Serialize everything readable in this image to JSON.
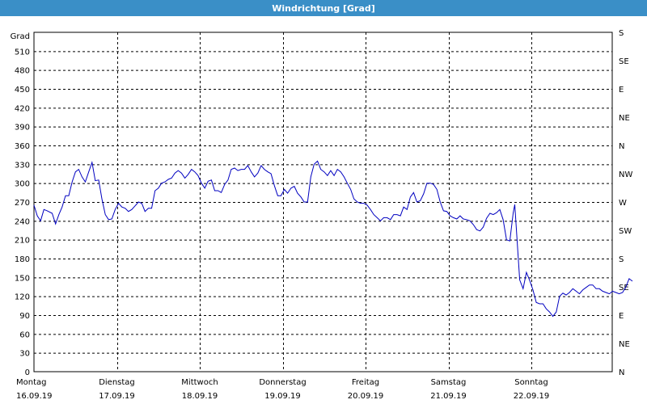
{
  "window": {
    "title": "Windrichtung [Grad]"
  },
  "colors": {
    "titlebar": "#3a8fc7",
    "line": "#0000c0",
    "grid": "#000000"
  },
  "chart_data": {
    "type": "line",
    "ylabel": "Grad",
    "ylim": [
      0,
      540
    ],
    "yticks": [
      0,
      30,
      60,
      90,
      120,
      150,
      180,
      210,
      240,
      270,
      300,
      330,
      360,
      390,
      420,
      450,
      480,
      510
    ],
    "right_ticks": [
      {
        "v": 0,
        "label": "N"
      },
      {
        "v": 45,
        "label": "NE"
      },
      {
        "v": 90,
        "label": "E"
      },
      {
        "v": 135,
        "label": "SE"
      },
      {
        "v": 180,
        "label": "S"
      },
      {
        "v": 225,
        "label": "SW"
      },
      {
        "v": 270,
        "label": "W"
      },
      {
        "v": 315,
        "label": "NW"
      },
      {
        "v": 360,
        "label": "N"
      },
      {
        "v": 405,
        "label": "NE"
      },
      {
        "v": 450,
        "label": "E"
      },
      {
        "v": 495,
        "label": "SE"
      },
      {
        "v": 540,
        "label": "S"
      }
    ],
    "xlim": [
      0,
      7
    ],
    "day_labels": [
      {
        "x": 0,
        "day": "Montag",
        "date": "16.09.19"
      },
      {
        "x": 1,
        "day": "Dienstag",
        "date": "17.09.19"
      },
      {
        "x": 2,
        "day": "Mittwoch",
        "date": "18.09.19"
      },
      {
        "x": 3,
        "day": "Donnerstag",
        "date": "19.09.19"
      },
      {
        "x": 4,
        "day": "Freitag",
        "date": "20.09.19"
      },
      {
        "x": 5,
        "day": "Samstag",
        "date": "21.09.19"
      },
      {
        "x": 6,
        "day": "Sonntag",
        "date": "22.09.19"
      }
    ],
    "grid": true,
    "series": [
      {
        "points": [
          [
            0.0,
            265
          ],
          [
            0.04,
            248
          ],
          [
            0.08,
            240
          ],
          [
            0.12,
            258
          ],
          [
            0.16,
            256
          ],
          [
            0.22,
            252
          ],
          [
            0.26,
            235
          ],
          [
            0.3,
            250
          ],
          [
            0.34,
            262
          ],
          [
            0.38,
            280
          ],
          [
            0.42,
            280
          ],
          [
            0.46,
            302
          ],
          [
            0.5,
            318
          ],
          [
            0.54,
            322
          ],
          [
            0.58,
            310
          ],
          [
            0.62,
            302
          ],
          [
            0.66,
            318
          ],
          [
            0.7,
            333
          ],
          [
            0.74,
            304
          ],
          [
            0.78,
            305
          ],
          [
            0.82,
            275
          ],
          [
            0.86,
            250
          ],
          [
            0.9,
            242
          ],
          [
            0.94,
            243
          ],
          [
            0.98,
            258
          ],
          [
            1.02,
            268
          ],
          [
            1.06,
            262
          ],
          [
            1.1,
            260
          ],
          [
            1.14,
            255
          ],
          [
            1.18,
            258
          ],
          [
            1.22,
            264
          ],
          [
            1.26,
            270
          ],
          [
            1.3,
            268
          ],
          [
            1.34,
            255
          ],
          [
            1.38,
            260
          ],
          [
            1.42,
            260
          ],
          [
            1.46,
            288
          ],
          [
            1.5,
            292
          ],
          [
            1.54,
            300
          ],
          [
            1.58,
            302
          ],
          [
            1.62,
            306
          ],
          [
            1.66,
            308
          ],
          [
            1.7,
            316
          ],
          [
            1.74,
            320
          ],
          [
            1.78,
            316
          ],
          [
            1.82,
            308
          ],
          [
            1.86,
            314
          ],
          [
            1.9,
            322
          ],
          [
            1.94,
            318
          ],
          [
            1.98,
            312
          ],
          [
            2.02,
            300
          ],
          [
            2.06,
            292
          ],
          [
            2.1,
            303
          ],
          [
            2.14,
            305
          ],
          [
            2.18,
            288
          ],
          [
            2.22,
            288
          ],
          [
            2.26,
            285
          ],
          [
            2.3,
            298
          ],
          [
            2.34,
            305
          ],
          [
            2.38,
            322
          ],
          [
            2.42,
            324
          ],
          [
            2.46,
            320
          ],
          [
            2.5,
            322
          ],
          [
            2.54,
            322
          ],
          [
            2.58,
            328
          ],
          [
            2.62,
            318
          ],
          [
            2.66,
            310
          ],
          [
            2.7,
            316
          ],
          [
            2.74,
            328
          ],
          [
            2.78,
            322
          ],
          [
            2.82,
            318
          ],
          [
            2.86,
            315
          ],
          [
            2.9,
            296
          ],
          [
            2.94,
            280
          ],
          [
            2.98,
            280
          ],
          [
            3.02,
            290
          ],
          [
            3.06,
            284
          ],
          [
            3.1,
            292
          ],
          [
            3.14,
            295
          ],
          [
            3.18,
            284
          ],
          [
            3.22,
            278
          ],
          [
            3.26,
            270
          ],
          [
            3.3,
            270
          ],
          [
            3.34,
            310
          ],
          [
            3.38,
            330
          ],
          [
            3.42,
            335
          ],
          [
            3.46,
            322
          ],
          [
            3.5,
            318
          ],
          [
            3.54,
            312
          ],
          [
            3.58,
            320
          ],
          [
            3.62,
            312
          ],
          [
            3.66,
            322
          ],
          [
            3.7,
            318
          ],
          [
            3.74,
            310
          ],
          [
            3.78,
            300
          ],
          [
            3.82,
            290
          ],
          [
            3.86,
            275
          ],
          [
            3.9,
            270
          ],
          [
            3.94,
            268
          ],
          [
            3.98,
            268
          ],
          [
            4.02,
            265
          ],
          [
            4.06,
            258
          ],
          [
            4.1,
            250
          ],
          [
            4.14,
            245
          ],
          [
            4.18,
            240
          ],
          [
            4.22,
            245
          ],
          [
            4.26,
            245
          ],
          [
            4.3,
            242
          ],
          [
            4.34,
            250
          ],
          [
            4.38,
            250
          ],
          [
            4.42,
            248
          ],
          [
            4.46,
            262
          ],
          [
            4.5,
            258
          ],
          [
            4.54,
            278
          ],
          [
            4.58,
            285
          ],
          [
            4.62,
            270
          ],
          [
            4.66,
            272
          ],
          [
            4.7,
            283
          ],
          [
            4.74,
            300
          ],
          [
            4.78,
            300
          ],
          [
            4.82,
            298
          ],
          [
            4.86,
            290
          ],
          [
            4.9,
            270
          ],
          [
            4.94,
            256
          ],
          [
            4.98,
            255
          ],
          [
            5.02,
            248
          ],
          [
            5.06,
            245
          ],
          [
            5.1,
            243
          ],
          [
            5.14,
            248
          ],
          [
            5.18,
            243
          ],
          [
            5.22,
            242
          ],
          [
            5.26,
            240
          ],
          [
            5.3,
            234
          ],
          [
            5.34,
            226
          ],
          [
            5.38,
            224
          ],
          [
            5.42,
            230
          ],
          [
            5.46,
            244
          ],
          [
            5.5,
            252
          ],
          [
            5.54,
            250
          ],
          [
            5.58,
            253
          ],
          [
            5.62,
            258
          ],
          [
            5.66,
            242
          ],
          [
            5.7,
            210
          ],
          [
            5.74,
            208
          ],
          [
            5.78,
            252
          ],
          [
            5.8,
            266
          ],
          [
            5.84,
            185
          ],
          [
            5.86,
            146
          ],
          [
            5.9,
            132
          ],
          [
            5.94,
            158
          ],
          [
            5.98,
            145
          ],
          [
            6.02,
            130
          ],
          [
            6.06,
            110
          ],
          [
            6.1,
            108
          ],
          [
            6.14,
            108
          ],
          [
            6.18,
            100
          ],
          [
            6.22,
            95
          ],
          [
            6.26,
            88
          ],
          [
            6.3,
            95
          ],
          [
            6.34,
            120
          ],
          [
            6.38,
            125
          ],
          [
            6.42,
            122
          ],
          [
            6.46,
            126
          ],
          [
            6.5,
            132
          ],
          [
            6.54,
            128
          ],
          [
            6.58,
            124
          ],
          [
            6.62,
            130
          ],
          [
            6.66,
            134
          ],
          [
            6.7,
            138
          ],
          [
            6.74,
            138
          ],
          [
            6.78,
            132
          ],
          [
            6.82,
            132
          ],
          [
            6.86,
            128
          ],
          [
            6.9,
            126
          ],
          [
            6.94,
            124
          ],
          [
            6.98,
            128
          ],
          [
            7.02,
            126
          ],
          [
            7.06,
            124
          ],
          [
            7.1,
            126
          ],
          [
            7.14,
            135
          ],
          [
            7.18,
            148
          ],
          [
            7.22,
            144
          ]
        ]
      }
    ]
  }
}
